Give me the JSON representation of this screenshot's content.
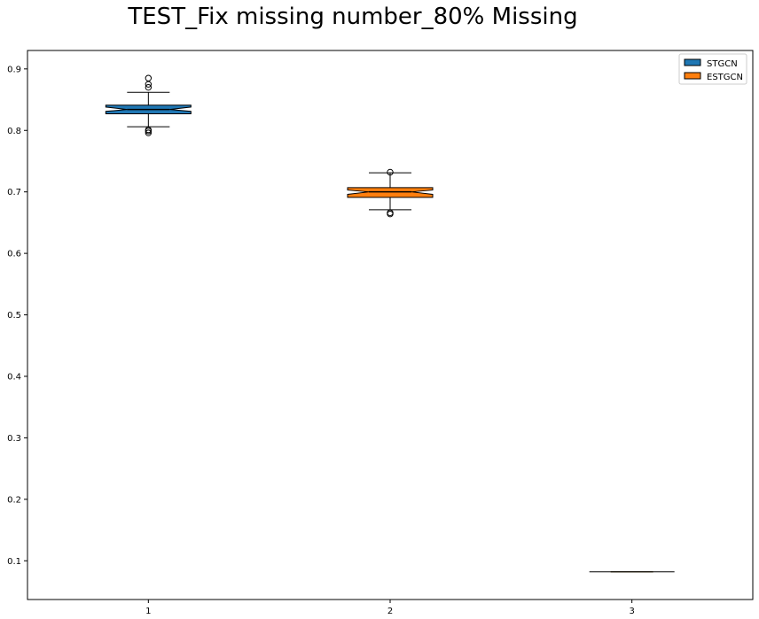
{
  "chart_data": {
    "type": "box",
    "title": "TEST_Fix missing number_80% Missing",
    "xlabel": "",
    "ylabel": "",
    "categories": [
      "1",
      "2",
      "3"
    ],
    "ylim": [
      0.037,
      0.93
    ],
    "yticks": [
      "0.1",
      "0.2",
      "0.3",
      "0.4",
      "0.5",
      "0.6",
      "0.7",
      "0.8",
      "0.9"
    ],
    "notched": true,
    "grid": false,
    "legend_position": "top-right",
    "series": [
      {
        "name": "STGCN",
        "color": "#1f77b4",
        "position": 1,
        "whisker_low": 0.806,
        "q1": 0.827,
        "median": 0.834,
        "q3": 0.841,
        "whisker_high": 0.862,
        "notch_low": 0.831,
        "notch_high": 0.838,
        "outliers": [
          0.885,
          0.875,
          0.87,
          0.801,
          0.799,
          0.796
        ]
      },
      {
        "name": "ESTGCN",
        "color": "#ff7f0e",
        "position": 2,
        "whisker_low": 0.671,
        "q1": 0.691,
        "median": 0.7,
        "q3": 0.707,
        "whisker_high": 0.731,
        "notch_low": 0.696,
        "notch_high": 0.703,
        "outliers": [
          0.732,
          0.666,
          0.664
        ]
      },
      {
        "name": "",
        "color": "#ff7f0e",
        "position": 3,
        "whisker_low": 0.082,
        "q1": 0.082,
        "median": 0.082,
        "q3": 0.082,
        "whisker_high": 0.082,
        "notch_low": 0.082,
        "notch_high": 0.082,
        "outliers": []
      }
    ],
    "legend": [
      {
        "label": "STGCN",
        "color": "#1f77b4"
      },
      {
        "label": "ESTGCN",
        "color": "#ff7f0e"
      }
    ],
    "median_color": "#000000",
    "flat_median_color": "#e8c27a"
  }
}
